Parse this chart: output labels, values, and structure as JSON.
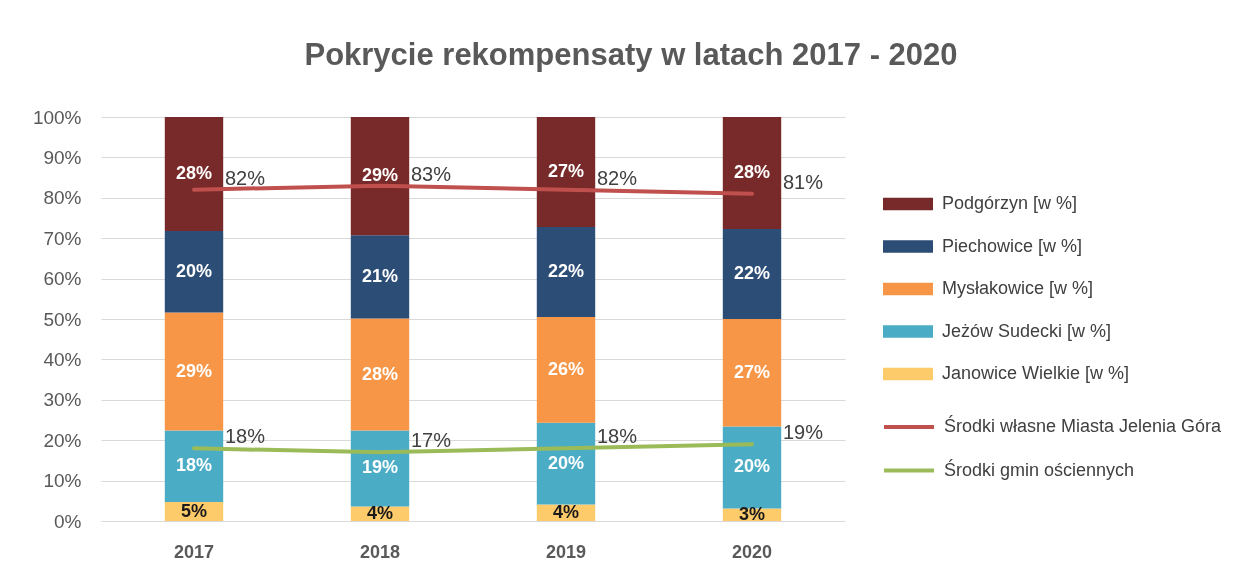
{
  "chart_data": {
    "type": "bar",
    "stacked": true,
    "title": "Pokrycie rekompensaty w latach 2017 - 2020",
    "categories": [
      "2017",
      "2018",
      "2019",
      "2020"
    ],
    "ylim": [
      0,
      100
    ],
    "yticks": [
      {
        "value": 0,
        "label": "0%"
      },
      {
        "value": 10,
        "label": "10%"
      },
      {
        "value": 20,
        "label": "20%"
      },
      {
        "value": 30,
        "label": "30%"
      },
      {
        "value": 40,
        "label": "40%"
      },
      {
        "value": 50,
        "label": "50%"
      },
      {
        "value": 60,
        "label": "60%"
      },
      {
        "value": 70,
        "label": "70%"
      },
      {
        "value": 80,
        "label": "80%"
      },
      {
        "value": 90,
        "label": "90%"
      },
      {
        "value": 100,
        "label": "100%"
      }
    ],
    "grid": "y",
    "legend": "right",
    "line_style": "solid",
    "series": [
      {
        "name": "Janowice Wielkie [w %]",
        "color": "#fecb6b",
        "values": [
          4.7,
          3.6,
          4.1,
          3.1
        ],
        "value_labels": [
          "5%",
          "4%",
          "4%",
          "3%"
        ]
      },
      {
        "name": "Jeżów Sudecki [w %]",
        "color": "#4bacc6",
        "values": [
          17.7,
          18.8,
          20.2,
          20.3
        ],
        "value_labels": [
          "18%",
          "19%",
          "20%",
          "20%"
        ]
      },
      {
        "name": "Mysłakowice [w %]",
        "color": "#f79646",
        "values": [
          29.2,
          27.7,
          26.2,
          26.6
        ],
        "value_labels": [
          "29%",
          "28%",
          "26%",
          "27%"
        ]
      },
      {
        "name": "Piechowice [w %]",
        "color": "#2c4d75",
        "values": [
          20.2,
          20.6,
          22.3,
          22.3
        ],
        "value_labels": [
          "20%",
          "21%",
          "22%",
          "22%"
        ]
      },
      {
        "name": "Podgórzyn [w %]",
        "color": "#772a29",
        "values": [
          28.2,
          29.3,
          27.2,
          27.7
        ],
        "value_labels": [
          "28%",
          "29%",
          "27%",
          "28%"
        ]
      },
      {
        "name": "Środki własne Miasta Jelenia Góra",
        "type": "line",
        "color": "#c0504d",
        "values": [
          82,
          83,
          82,
          81
        ],
        "value_labels": [
          "82%",
          "83%",
          "82%",
          "81%"
        ]
      },
      {
        "name": "Środki gmin ościennych",
        "type": "line",
        "color": "#9bbb59",
        "values": [
          18,
          17,
          18,
          19
        ],
        "value_labels": [
          "18%",
          "17%",
          "18%",
          "19%"
        ]
      }
    ]
  }
}
